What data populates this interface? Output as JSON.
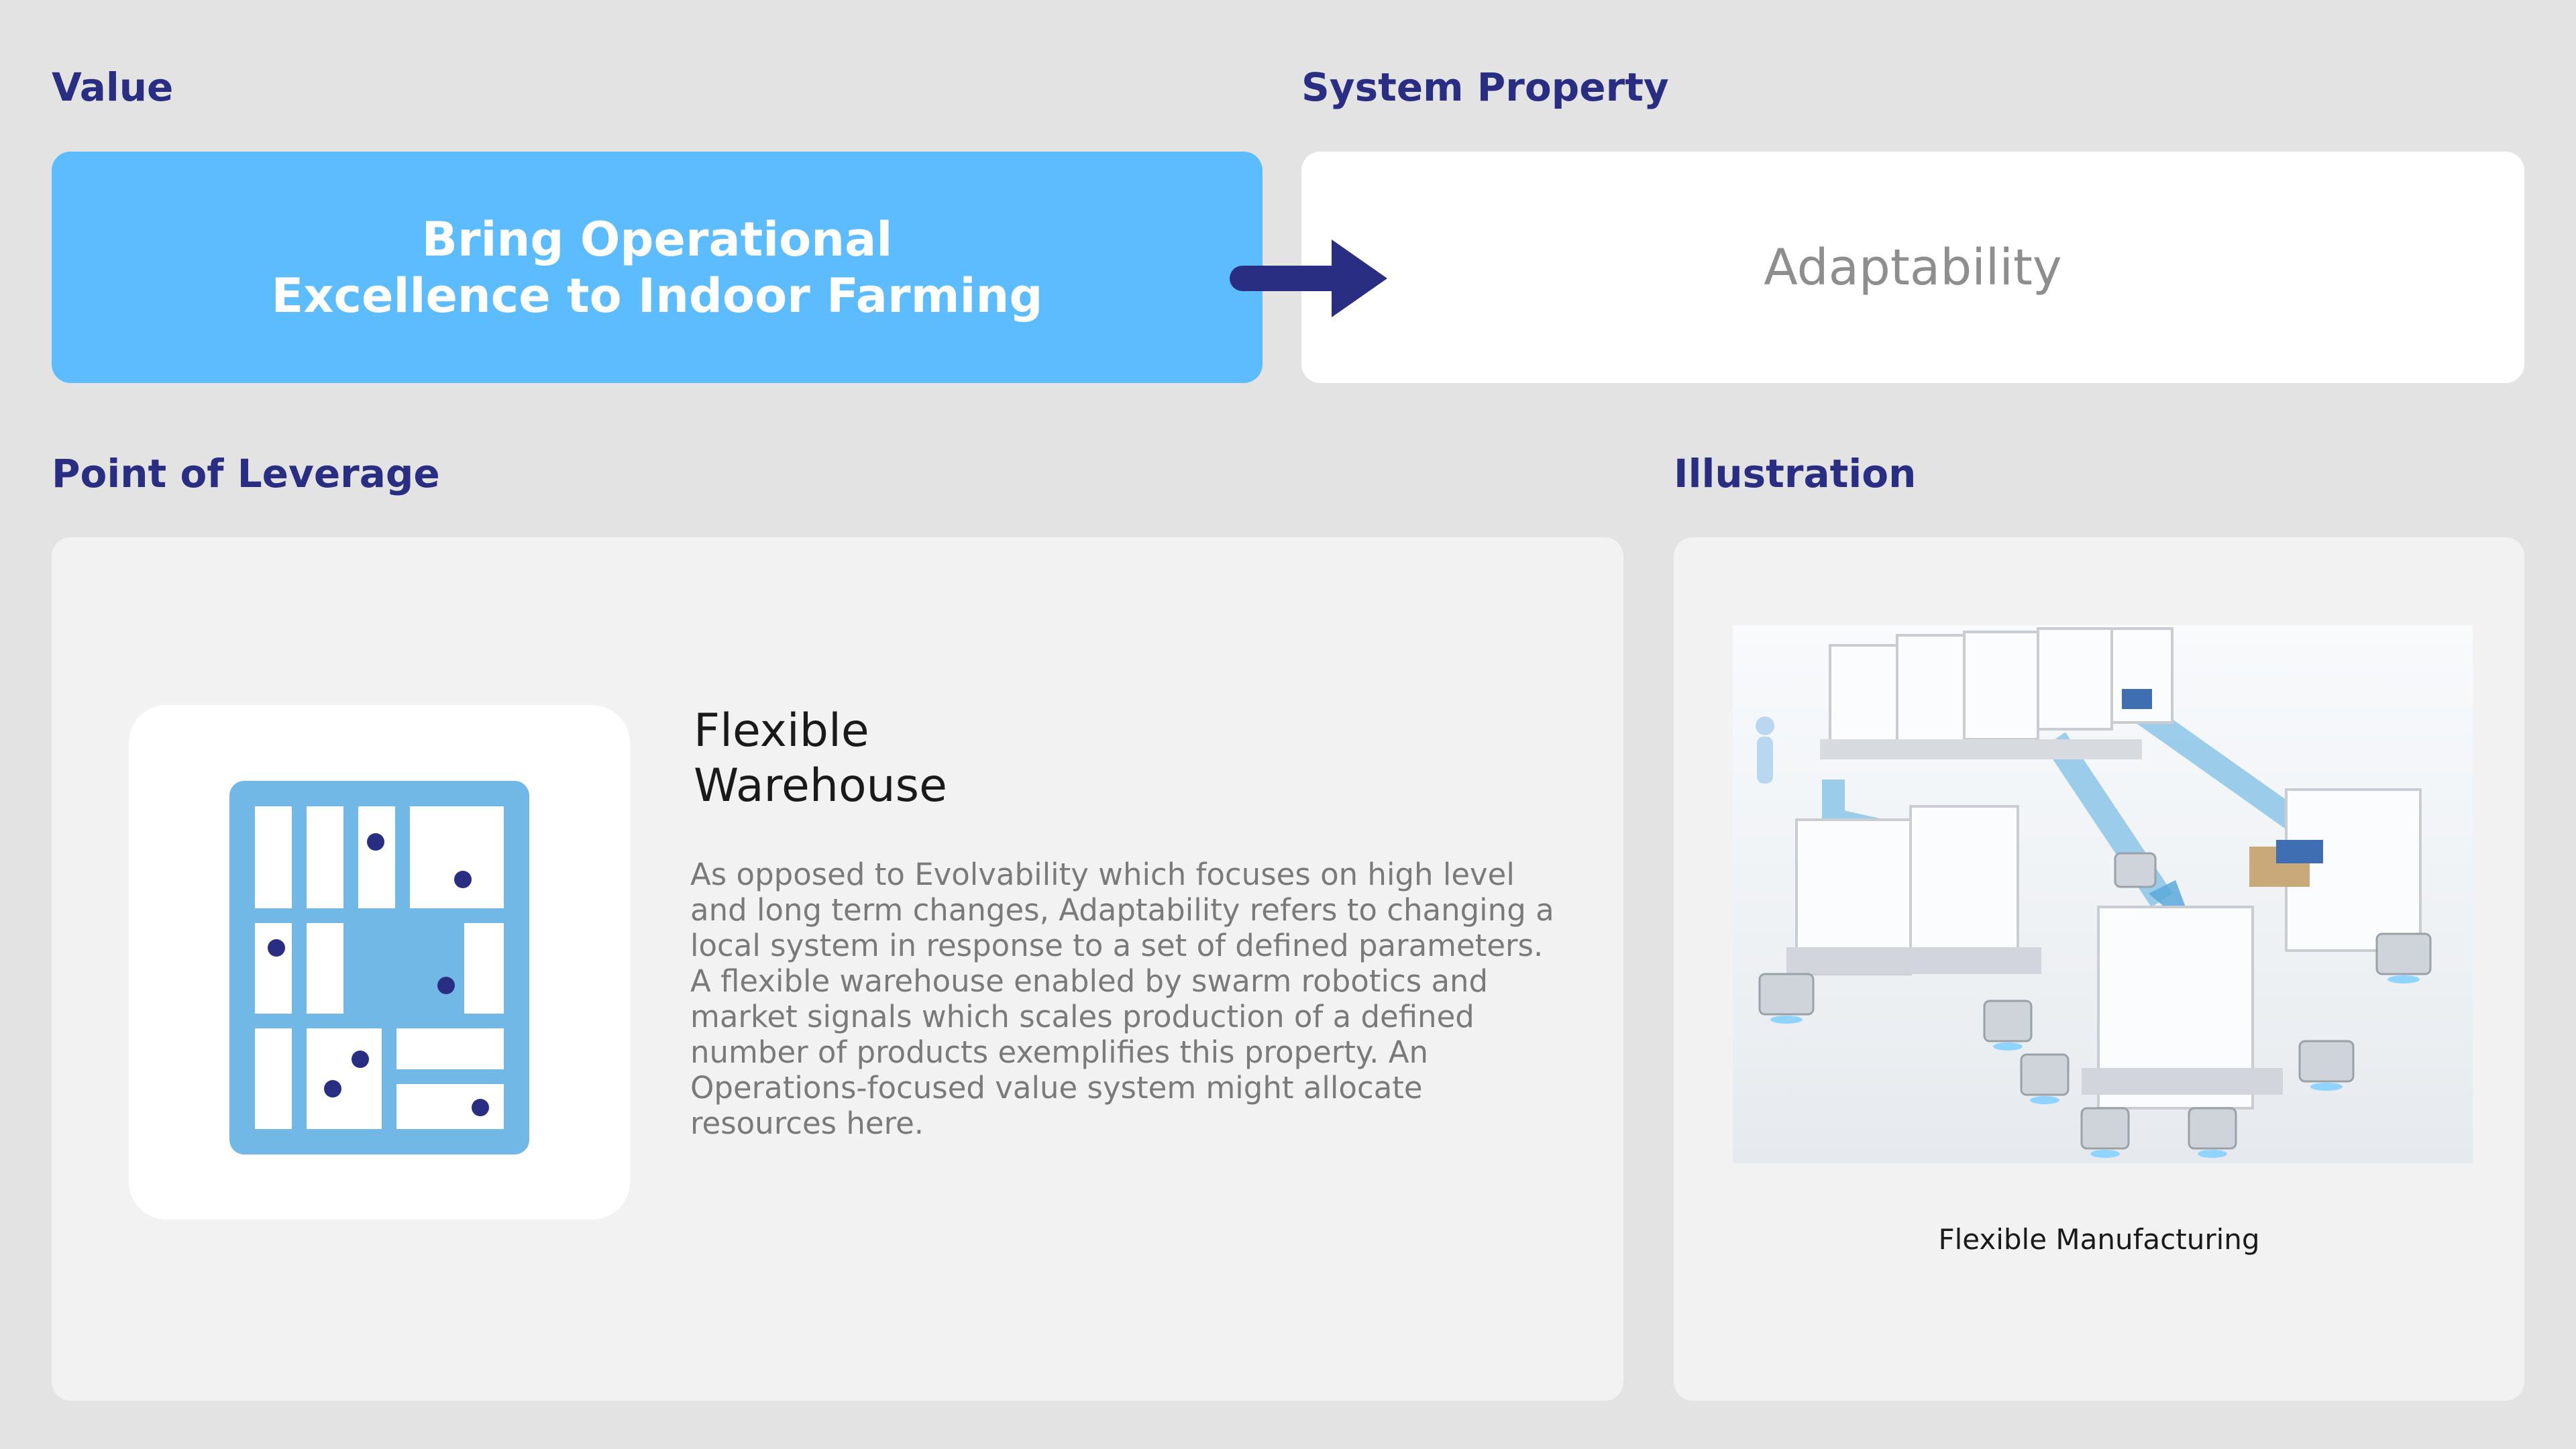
{
  "labels": {
    "value": "Value",
    "system_property": "System Property",
    "point_of_leverage": "Point of Leverage",
    "illustration": "Illustration"
  },
  "value_card": {
    "line1": "Bring Operational",
    "line2": "Excellence to Indoor Farming"
  },
  "property_card": {
    "text": "Adaptability"
  },
  "leverage": {
    "title_line1": "Flexible",
    "title_line2": "Warehouse",
    "body": "As opposed to Evolvability which focuses on high level and long term changes, Adaptability refers to changing a local system in response to a set of defined parameters. A flexible warehouse enabled by swarm robotics and market signals which scales production of a defined number of products exemplifies this property. An Operations-focused value system  might allocate resources here.",
    "icon": "warehouse-grid-icon"
  },
  "illustration": {
    "caption": "Flexible Manufacturing"
  },
  "colors": {
    "background": "#e3e3e3",
    "label": "#2a2e82",
    "value_fill": "#5cbcfd",
    "arrow": "#2a2e82",
    "icon_fill": "#72b8e6",
    "icon_dot": "#2a2e82"
  }
}
